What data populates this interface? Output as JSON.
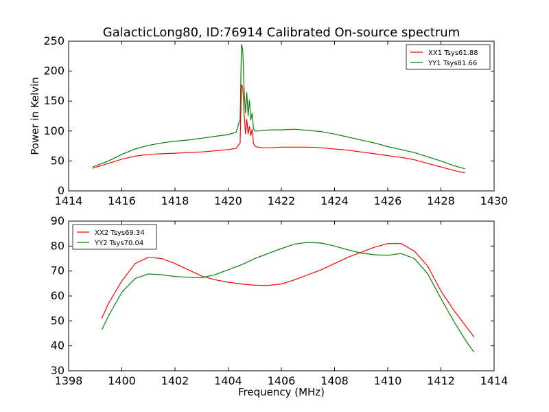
{
  "chart_data": [
    {
      "type": "line",
      "title": "GalacticLong80, ID:76914 Calibrated On-source spectrum",
      "xlabel": "",
      "ylabel": "Power in Kelvin",
      "xlim": [
        1414,
        1430
      ],
      "ylim": [
        0,
        250
      ],
      "xticks": [
        "1414",
        "1416",
        "1418",
        "1420",
        "1422",
        "1424",
        "1426",
        "1428",
        "1430"
      ],
      "yticks": [
        "0",
        "50",
        "100",
        "150",
        "200",
        "250"
      ],
      "legend_position": "top-right",
      "series": [
        {
          "name": "XX1 Tsys61.88",
          "color": "#ff0000",
          "x": [
            1414.9,
            1415.5,
            1416,
            1416.5,
            1417,
            1417.5,
            1418,
            1418.5,
            1419,
            1419.5,
            1420,
            1420.3,
            1420.45,
            1420.5,
            1420.55,
            1420.6,
            1420.65,
            1420.7,
            1420.75,
            1420.8,
            1420.85,
            1420.9,
            1420.95,
            1421,
            1421.1,
            1421.3,
            1421.6,
            1422,
            1422.5,
            1423,
            1423.5,
            1424,
            1424.5,
            1425,
            1425.5,
            1426,
            1426.5,
            1427,
            1427.5,
            1428,
            1428.5,
            1428.9
          ],
          "y": [
            38,
            46,
            53,
            58,
            61,
            62,
            63,
            64,
            65,
            67,
            69,
            71,
            80,
            178,
            172,
            130,
            95,
            120,
            95,
            108,
            92,
            103,
            80,
            75,
            73,
            72,
            72,
            73,
            73,
            73,
            72,
            70,
            68,
            65,
            62,
            59,
            56,
            52,
            46,
            40,
            34,
            30
          ]
        },
        {
          "name": "YY1 Tsys81.66",
          "color": "#008000",
          "x": [
            1414.9,
            1415.5,
            1416,
            1416.5,
            1417,
            1417.5,
            1418,
            1418.5,
            1419,
            1419.5,
            1420,
            1420.3,
            1420.45,
            1420.5,
            1420.55,
            1420.6,
            1420.65,
            1420.7,
            1420.75,
            1420.8,
            1420.85,
            1420.9,
            1420.95,
            1421,
            1421.1,
            1421.3,
            1421.6,
            1422,
            1422.5,
            1423,
            1423.5,
            1424,
            1424.5,
            1425,
            1425.5,
            1426,
            1426.5,
            1427,
            1427.5,
            1428,
            1428.5,
            1428.9
          ],
          "y": [
            40,
            50,
            61,
            70,
            76,
            80,
            83,
            85,
            88,
            91,
            94,
            98,
            120,
            245,
            235,
            170,
            130,
            165,
            125,
            152,
            118,
            130,
            104,
            100,
            100,
            101,
            102,
            102,
            103,
            101,
            99,
            95,
            90,
            85,
            80,
            74,
            69,
            64,
            57,
            50,
            42,
            37
          ]
        }
      ]
    },
    {
      "type": "line",
      "title": "",
      "xlabel": "Frequency (MHz)",
      "ylabel": "",
      "xlim": [
        1398,
        1414
      ],
      "ylim": [
        30,
        90
      ],
      "xticks": [
        "1398",
        "1400",
        "1402",
        "1404",
        "1406",
        "1408",
        "1410",
        "1412",
        "1414"
      ],
      "yticks": [
        "30",
        "40",
        "50",
        "60",
        "70",
        "80",
        "90"
      ],
      "legend_position": "top-left",
      "series": [
        {
          "name": "XX2 Tsys69.34",
          "color": "#ff0000",
          "x": [
            1399.25,
            1399.5,
            1400,
            1400.5,
            1401,
            1401.5,
            1402,
            1402.5,
            1403,
            1403.5,
            1404,
            1404.5,
            1405,
            1405.5,
            1406,
            1406.5,
            1407,
            1407.5,
            1408,
            1408.5,
            1409,
            1409.5,
            1410,
            1410.5,
            1411,
            1411.5,
            1412,
            1412.5,
            1413,
            1413.25
          ],
          "y": [
            51,
            57,
            66,
            73,
            75.5,
            75,
            73,
            70.5,
            68,
            66.5,
            65.5,
            64.8,
            64.3,
            64.2,
            64.8,
            66.5,
            68.5,
            70.5,
            73,
            75.5,
            77.5,
            79.5,
            81,
            81,
            78,
            72,
            62,
            54,
            47,
            43.5
          ]
        },
        {
          "name": "YY2 Tsys70.04",
          "color": "#008000",
          "x": [
            1399.25,
            1399.5,
            1400,
            1400.5,
            1401,
            1401.5,
            1402,
            1402.5,
            1403,
            1403.5,
            1404,
            1404.5,
            1405,
            1405.5,
            1406,
            1406.5,
            1407,
            1407.5,
            1408,
            1408.5,
            1409,
            1409.5,
            1410,
            1410.5,
            1411,
            1411.5,
            1412,
            1412.5,
            1413,
            1413.25
          ],
          "y": [
            46.5,
            52,
            61.5,
            67,
            68.8,
            68.5,
            67.8,
            67.5,
            67.3,
            68.5,
            70.5,
            72.5,
            75,
            77,
            79,
            80.8,
            81.5,
            81.2,
            80,
            78.5,
            77.2,
            76.5,
            76.3,
            77,
            75,
            69,
            59,
            49.5,
            41,
            37.5
          ]
        }
      ]
    }
  ]
}
